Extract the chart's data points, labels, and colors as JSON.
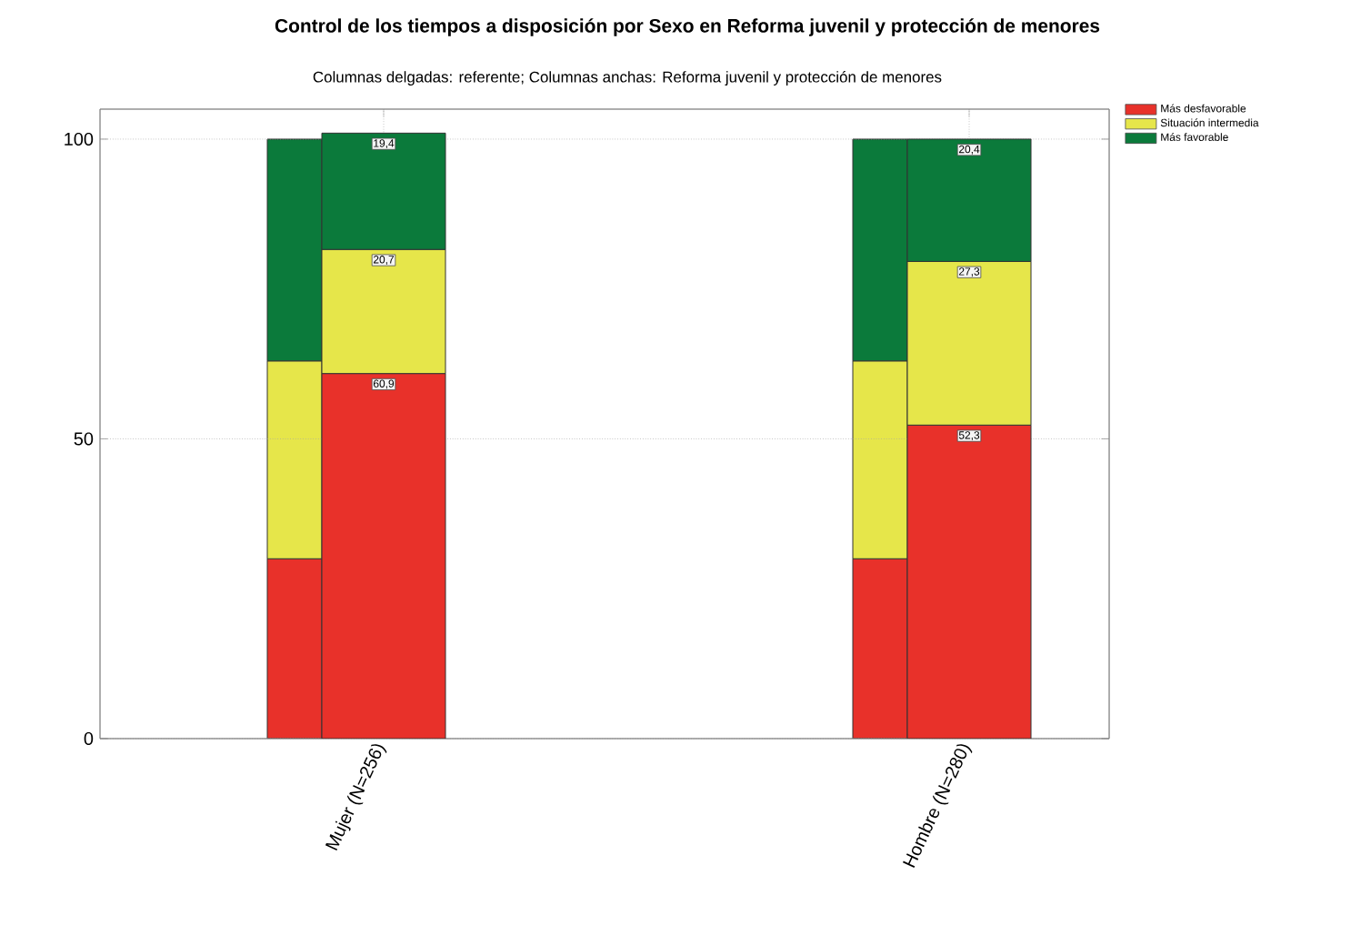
{
  "chart_data": [
    {
      "type": "bar",
      "stacked": true,
      "categories": [
        null,
        null
      ],
      "series": [
        {
          "color": "#e8312a",
          "values": [
            30,
            30
          ]
        },
        {
          "color": "#e6e64a",
          "values": [
            33,
            33
          ]
        },
        {
          "color": "#0b7a3b",
          "values": [
            37,
            37
          ]
        }
      ],
      "ylim": [
        0,
        105
      ],
      "yticks": [
        0,
        50,
        100
      ],
      "tick_labels": false
    },
    {
      "type": "bar",
      "stacked": true,
      "title": "Control de los tiempos a disposición por Sexo en Reforma juvenil y protección de menores",
      "subtitle": "Columnas delgadas: referente; Columnas anchas: Reforma juvenil y protección de menores",
      "categories": [
        "Mujer (N=256)",
        "Hombre (N=280)"
      ],
      "series": [
        {
          "name": "Más  desfavorable",
          "color": "#e8312a",
          "values": [
            60.9,
            52.3
          ],
          "value_labels": [
            "60,9",
            "52,3"
          ]
        },
        {
          "name": "Situación intermedia",
          "color": "#e6e64a",
          "values": [
            20.7,
            27.3
          ],
          "value_labels": [
            "20,7",
            "27,3"
          ]
        },
        {
          "name": "Más favorable",
          "color": "#0b7a3b",
          "values": [
            19.4,
            20.4
          ],
          "value_labels": [
            "19,4",
            "20,4"
          ]
        }
      ],
      "ylim": [
        0,
        105
      ],
      "yticks": [
        0,
        50,
        100
      ],
      "grid": true,
      "legend": "top right"
    }
  ]
}
